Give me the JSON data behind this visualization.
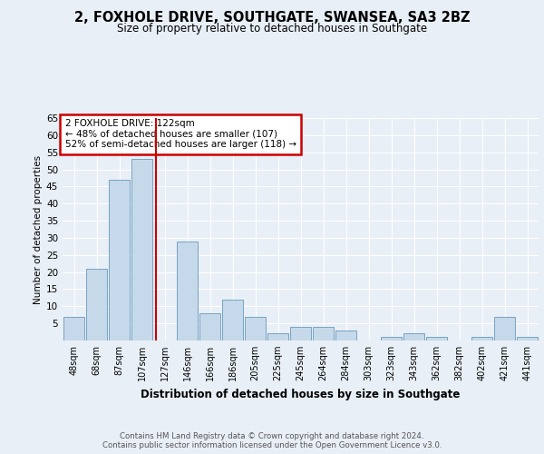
{
  "title1": "2, FOXHOLE DRIVE, SOUTHGATE, SWANSEA, SA3 2BZ",
  "title2": "Size of property relative to detached houses in Southgate",
  "xlabel": "Distribution of detached houses by size in Southgate",
  "ylabel": "Number of detached properties",
  "categories": [
    "48sqm",
    "68sqm",
    "87sqm",
    "107sqm",
    "127sqm",
    "146sqm",
    "166sqm",
    "186sqm",
    "205sqm",
    "225sqm",
    "245sqm",
    "264sqm",
    "284sqm",
    "303sqm",
    "323sqm",
    "343sqm",
    "362sqm",
    "382sqm",
    "402sqm",
    "421sqm",
    "441sqm"
  ],
  "values": [
    7,
    21,
    47,
    53,
    0,
    29,
    8,
    12,
    7,
    2,
    4,
    4,
    3,
    0,
    1,
    2,
    1,
    0,
    1,
    7,
    1
  ],
  "bar_color": "#c6d9ea",
  "bar_edge_color": "#6699bb",
  "vline_x_index": 4,
  "annotation_text": "2 FOXHOLE DRIVE: 122sqm\n← 48% of detached houses are smaller (107)\n52% of semi-detached houses are larger (118) →",
  "annotation_box_color": "#ffffff",
  "annotation_box_edge": "#cc0000",
  "vline_color": "#cc0000",
  "footer": "Contains HM Land Registry data © Crown copyright and database right 2024.\nContains public sector information licensed under the Open Government Licence v3.0.",
  "ylim": [
    0,
    65
  ],
  "yticks": [
    0,
    5,
    10,
    15,
    20,
    25,
    30,
    35,
    40,
    45,
    50,
    55,
    60,
    65
  ],
  "background_color": "#e8eff6",
  "grid_color": "#ffffff",
  "title1_fontsize": 10.5,
  "title2_fontsize": 8.5
}
